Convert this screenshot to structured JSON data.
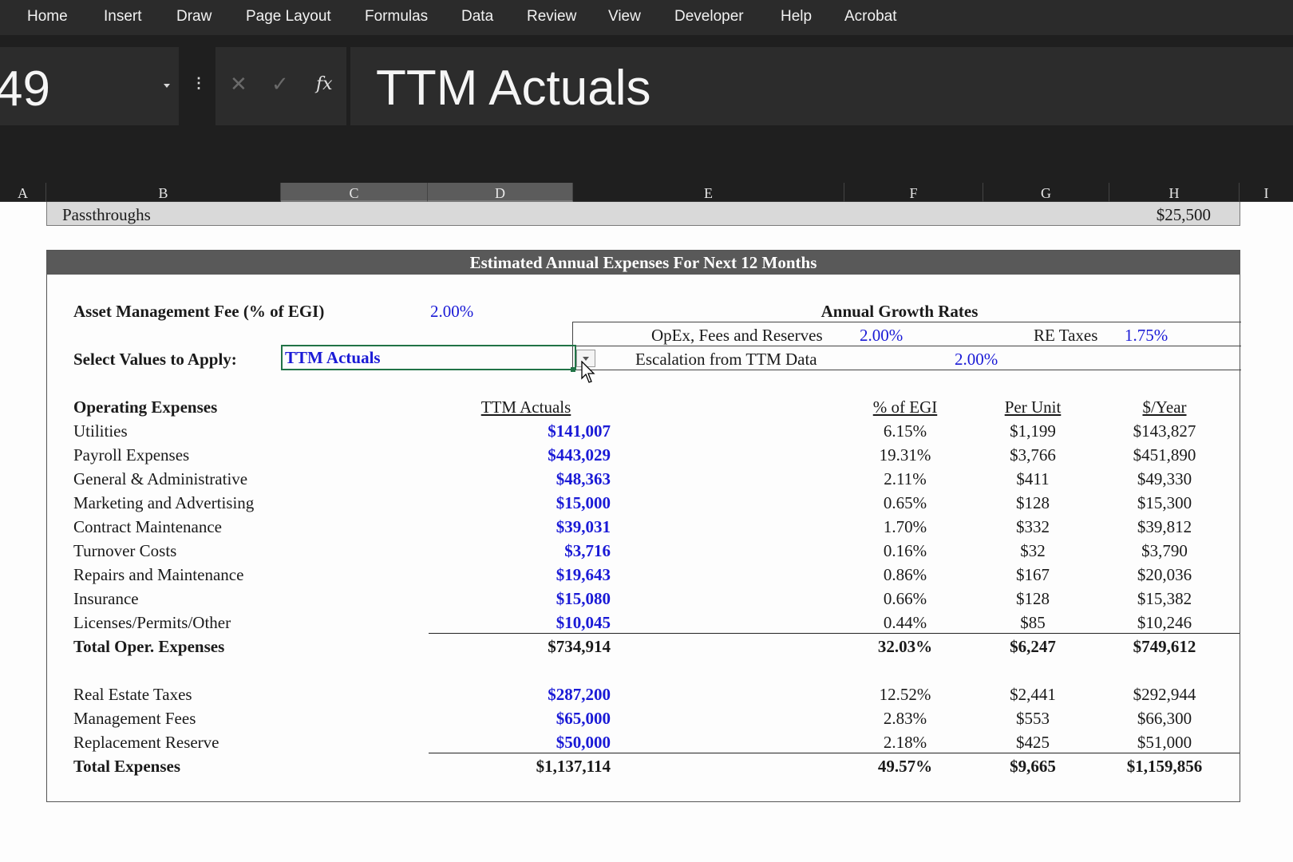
{
  "ribbon": {
    "tabs": [
      "Home",
      "Insert",
      "Draw",
      "Page Layout",
      "Formulas",
      "Data",
      "Review",
      "View",
      "Developer",
      "Help",
      "Acrobat"
    ]
  },
  "formula_bar": {
    "name_box": "49",
    "cancel_icon": "✕",
    "enter_icon": "✓",
    "fx_label": "fx",
    "value": "TTM Actuals"
  },
  "columns": [
    "A",
    "B",
    "C",
    "D",
    "E",
    "F",
    "G",
    "H",
    "I"
  ],
  "passthroughs": {
    "label": "Passthroughs",
    "value": "$25,500"
  },
  "section_title": "Estimated Annual Expenses For Next 12 Months",
  "asset_mgmt": {
    "label": "Asset Management Fee (% of EGI)",
    "value": "2.00%"
  },
  "select_values": {
    "label": "Select Values to Apply:",
    "value": "TTM Actuals"
  },
  "growth": {
    "title": "Annual Growth Rates",
    "opex_label": "OpEx, Fees and Reserves",
    "opex_value": "2.00%",
    "retax_label": "RE Taxes",
    "retax_value": "1.75%",
    "escalation_label": "Escalation from TTM Data",
    "escalation_value": "2.00%"
  },
  "headers": {
    "opex": "Operating Expenses",
    "ttm": "TTM Actuals",
    "pct_egi": "% of EGI",
    "per_unit": "Per Unit",
    "per_year": "$/Year"
  },
  "opex_rows": [
    {
      "label": "Utilities",
      "ttm": "$141,007",
      "pct": "6.15%",
      "unit": "$1,199",
      "year": "$143,827"
    },
    {
      "label": "Payroll Expenses",
      "ttm": "$443,029",
      "pct": "19.31%",
      "unit": "$3,766",
      "year": "$451,890"
    },
    {
      "label": "General & Administrative",
      "ttm": "$48,363",
      "pct": "2.11%",
      "unit": "$411",
      "year": "$49,330"
    },
    {
      "label": "Marketing and Advertising",
      "ttm": "$15,000",
      "pct": "0.65%",
      "unit": "$128",
      "year": "$15,300"
    },
    {
      "label": "Contract Maintenance",
      "ttm": "$39,031",
      "pct": "1.70%",
      "unit": "$332",
      "year": "$39,812"
    },
    {
      "label": "Turnover Costs",
      "ttm": "$3,716",
      "pct": "0.16%",
      "unit": "$32",
      "year": "$3,790"
    },
    {
      "label": "Repairs and Maintenance",
      "ttm": "$19,643",
      "pct": "0.86%",
      "unit": "$167",
      "year": "$20,036"
    },
    {
      "label": "Insurance",
      "ttm": "$15,080",
      "pct": "0.66%",
      "unit": "$128",
      "year": "$15,382"
    },
    {
      "label": "Licenses/Permits/Other",
      "ttm": "$10,045",
      "pct": "0.44%",
      "unit": "$85",
      "year": "$10,246"
    }
  ],
  "total_opex": {
    "label": "Total Oper. Expenses",
    "ttm": "$734,914",
    "pct": "32.03%",
    "unit": "$6,247",
    "year": "$749,612"
  },
  "other_rows": [
    {
      "label": "Real Estate Taxes",
      "ttm": "$287,200",
      "pct": "12.52%",
      "unit": "$2,441",
      "year": "$292,944"
    },
    {
      "label": "Management Fees",
      "ttm": "$65,000",
      "pct": "2.83%",
      "unit": "$553",
      "year": "$66,300"
    },
    {
      "label": "Replacement Reserve",
      "ttm": "$50,000",
      "pct": "2.18%",
      "unit": "$425",
      "year": "$51,000"
    }
  ],
  "total_expenses": {
    "label": "Total Expenses",
    "ttm": "$1,137,114",
    "pct": "49.57%",
    "unit": "$9,665",
    "year": "$1,159,856"
  },
  "colors": {
    "input_blue": "#1a1ad6",
    "ribbon_bg": "#2b2b2b",
    "title_bar": "#595959",
    "selection_green": "#217346"
  }
}
